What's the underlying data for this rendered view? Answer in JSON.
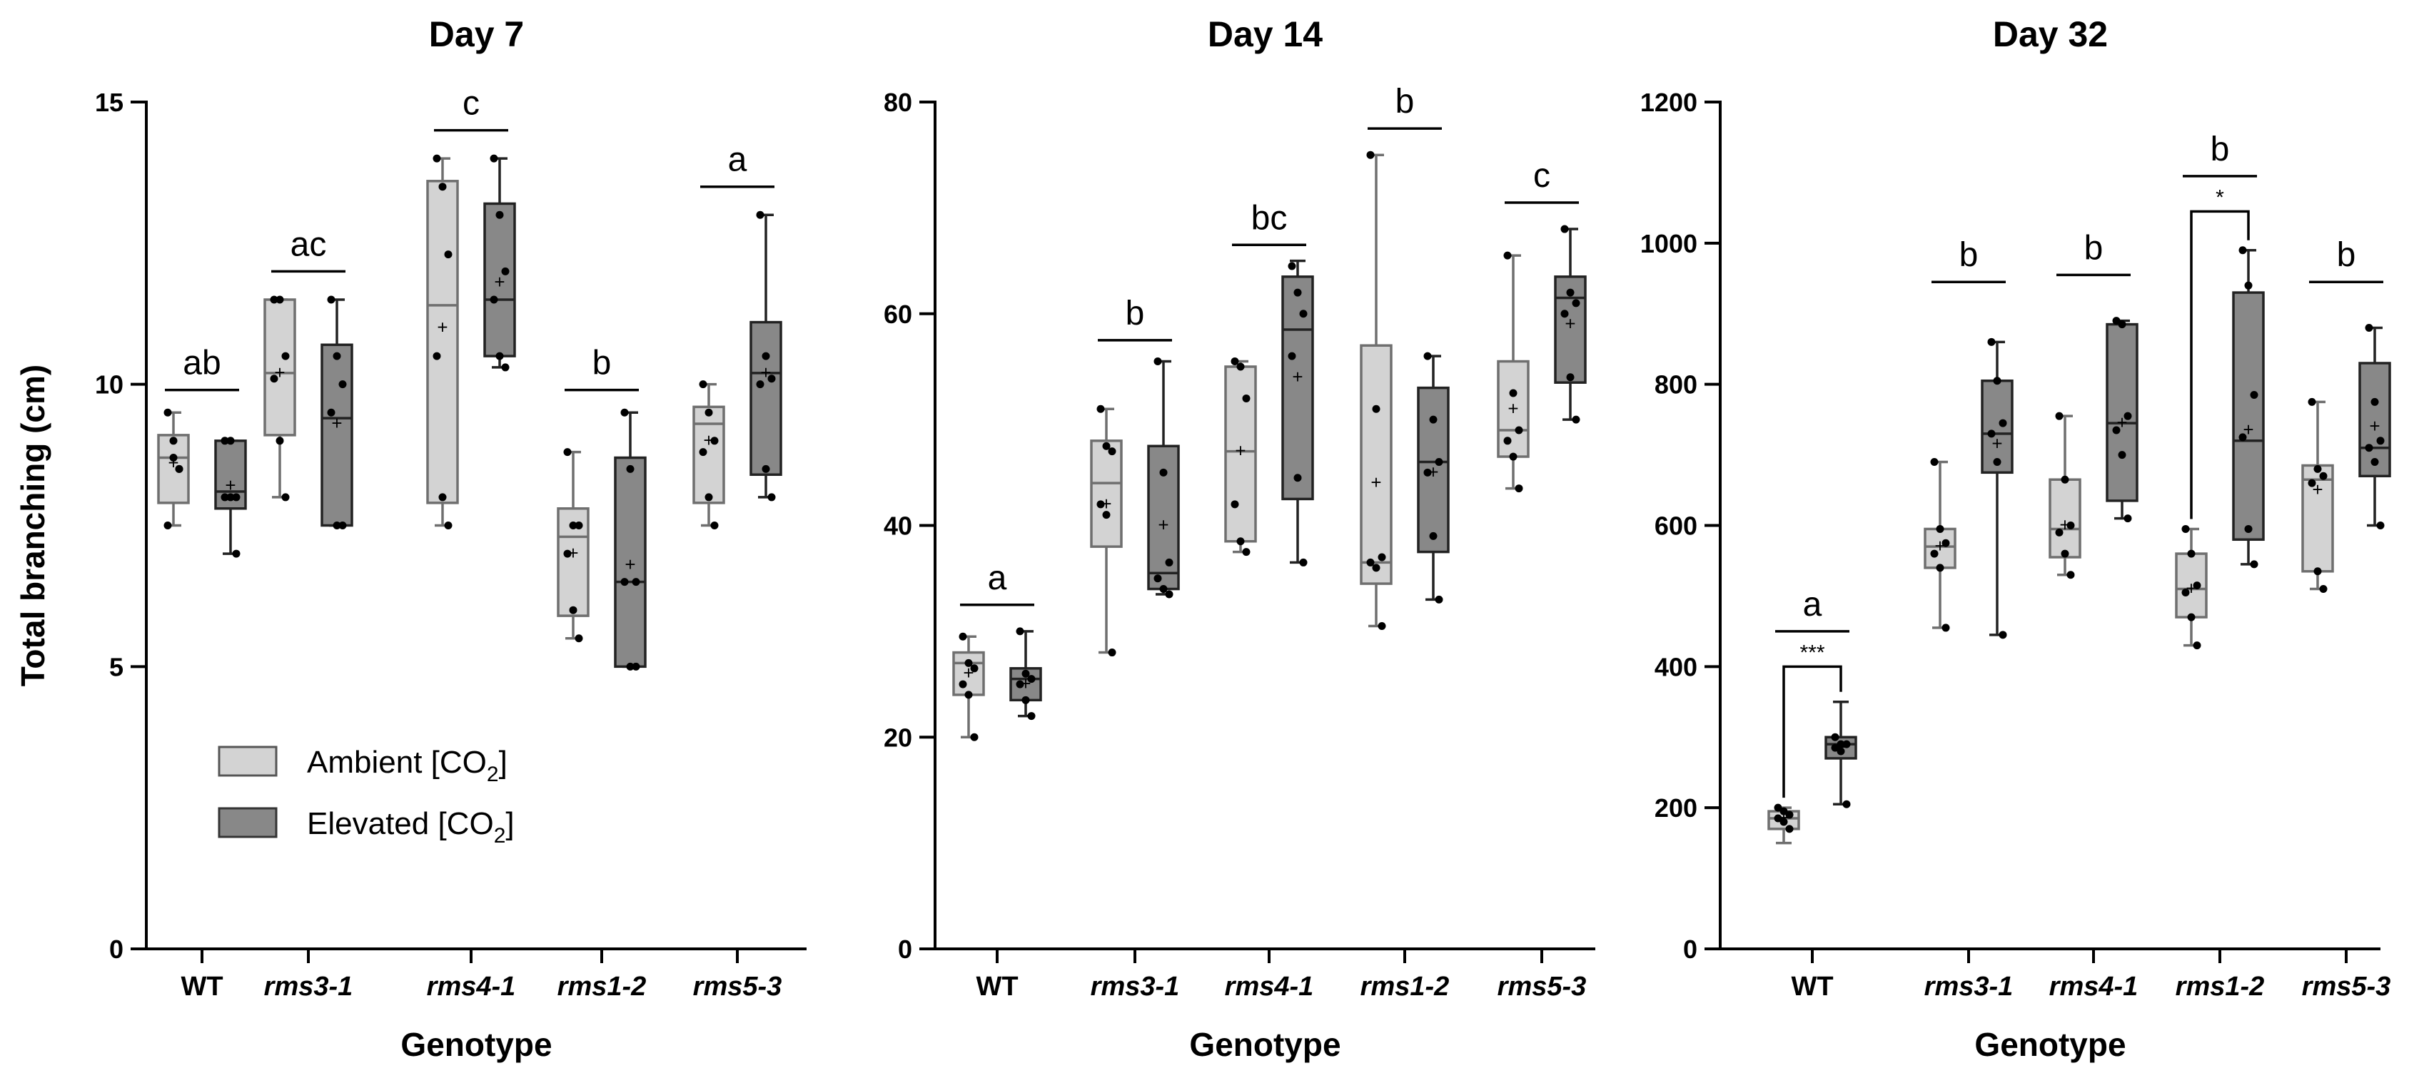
{
  "chart_data": [
    {
      "type": "box",
      "title": "Day 7",
      "xlabel": "Genotype",
      "ylabel": "Total branching (cm)",
      "ylim": [
        0,
        15
      ],
      "yticks": [
        "0",
        "5",
        "10",
        "15"
      ],
      "ytick_values": [
        0,
        5,
        10,
        15
      ],
      "categories": [
        "WT",
        "rms3-1",
        "rms4-1",
        "rms1-2",
        "rms5-3"
      ],
      "italic_categories": [
        false,
        true,
        true,
        true,
        true
      ],
      "series": [
        {
          "name": "Ambient [CO2]",
          "color": "#d3d3d3",
          "boxes": [
            {
              "min": 7.5,
              "q1": 7.9,
              "median": 8.7,
              "q3": 9.1,
              "max": 9.5,
              "mean": 8.6,
              "points": [
                9.5,
                9.0,
                8.5,
                7.5,
                8.7,
                8.5
              ]
            },
            {
              "min": 8.0,
              "q1": 9.1,
              "median": 10.2,
              "q3": 11.5,
              "max": 11.5,
              "mean": 10.2,
              "points": [
                11.5,
                11.5,
                10.5,
                10.1,
                9.0,
                8.0
              ]
            },
            {
              "min": 7.5,
              "q1": 7.9,
              "median": 11.4,
              "q3": 13.6,
              "max": 14.0,
              "mean": 11.0,
              "points": [
                14.0,
                13.5,
                12.3,
                10.5,
                8.0,
                7.5
              ]
            },
            {
              "min": 5.5,
              "q1": 5.9,
              "median": 7.3,
              "q3": 7.8,
              "max": 8.8,
              "mean": 7.0,
              "points": [
                8.8,
                7.5,
                7.5,
                7.0,
                6.0,
                5.5
              ]
            },
            {
              "min": 7.5,
              "q1": 7.9,
              "median": 9.3,
              "q3": 9.6,
              "max": 10.0,
              "mean": 9.0,
              "points": [
                10.0,
                9.5,
                9.0,
                8.8,
                8.0,
                7.5
              ]
            }
          ]
        },
        {
          "name": "Elevated [CO2]",
          "color": "#888888",
          "boxes": [
            {
              "min": 7.0,
              "q1": 7.8,
              "median": 8.1,
              "q3": 9.0,
              "max": 9.0,
              "mean": 8.2,
              "points": [
                9.0,
                9.0,
                8.0,
                8.0,
                8.0,
                7.0
              ]
            },
            {
              "min": 7.5,
              "q1": 7.5,
              "median": 9.4,
              "q3": 10.7,
              "max": 11.5,
              "mean": 9.3,
              "points": [
                11.5,
                10.5,
                10.0,
                9.5,
                7.5,
                7.5
              ]
            },
            {
              "min": 10.3,
              "q1": 10.5,
              "median": 11.5,
              "q3": 13.2,
              "max": 14.0,
              "mean": 11.8,
              "points": [
                14.0,
                13.0,
                12.0,
                11.5,
                10.5,
                10.3
              ]
            },
            {
              "min": 5.0,
              "q1": 5.0,
              "median": 6.5,
              "q3": 8.7,
              "max": 9.5,
              "mean": 6.8,
              "points": [
                9.5,
                8.5,
                6.5,
                6.5,
                5.0,
                5.0
              ]
            },
            {
              "min": 8.0,
              "q1": 8.4,
              "median": 10.2,
              "q3": 11.1,
              "max": 13.0,
              "mean": 10.2,
              "points": [
                13.0,
                10.5,
                10.1,
                10.0,
                8.5,
                8.0
              ]
            }
          ]
        }
      ],
      "sig_letters": [
        "ab",
        "ac",
        "c",
        "b",
        "a"
      ],
      "sig_heights": [
        9.9,
        12.0,
        14.5,
        9.9,
        13.5
      ],
      "pairwise": []
    },
    {
      "type": "box",
      "title": "Day 14",
      "xlabel": "Genotype",
      "ylabel": "",
      "ylim": [
        0,
        80
      ],
      "yticks": [
        "0",
        "20",
        "40",
        "60",
        "80"
      ],
      "ytick_values": [
        0,
        20,
        40,
        60,
        80
      ],
      "categories": [
        "WT",
        "rms3-1",
        "rms4-1",
        "rms1-2",
        "rms5-3"
      ],
      "italic_categories": [
        false,
        true,
        true,
        true,
        true
      ],
      "series": [
        {
          "name": "Ambient [CO2]",
          "color": "#d3d3d3",
          "boxes": [
            {
              "min": 20.0,
              "q1": 24.0,
              "median": 27.0,
              "q3": 28.0,
              "max": 29.5,
              "mean": 26.0,
              "points": [
                29.5,
                27.0,
                26.5,
                25.0,
                24.0,
                20.0
              ]
            },
            {
              "min": 28.0,
              "q1": 38.0,
              "median": 44.0,
              "q3": 48.0,
              "max": 51.0,
              "mean": 42.0,
              "points": [
                51.0,
                47.5,
                47.0,
                42.0,
                41.0,
                28.0
              ]
            },
            {
              "min": 37.5,
              "q1": 38.5,
              "median": 47.0,
              "q3": 55.0,
              "max": 55.5,
              "mean": 47.0,
              "points": [
                55.5,
                55.0,
                52.0,
                42.0,
                38.5,
                37.5
              ]
            },
            {
              "min": 30.5,
              "q1": 34.5,
              "median": 36.5,
              "q3": 57.0,
              "max": 75.0,
              "mean": 44.0,
              "points": [
                75.0,
                51.0,
                37.0,
                36.5,
                36.0,
                30.5
              ]
            },
            {
              "min": 43.5,
              "q1": 46.5,
              "median": 49.0,
              "q3": 55.5,
              "max": 65.5,
              "mean": 51.0,
              "points": [
                65.5,
                52.5,
                49.0,
                48.0,
                46.5,
                43.5
              ]
            }
          ]
        },
        {
          "name": "Elevated [CO2]",
          "color": "#888888",
          "boxes": [
            {
              "min": 22.0,
              "q1": 23.5,
              "median": 25.5,
              "q3": 26.5,
              "max": 30.0,
              "mean": 25.0,
              "points": [
                30.0,
                26.0,
                25.5,
                25.0,
                23.5,
                22.0
              ]
            },
            {
              "min": 33.5,
              "q1": 34.0,
              "median": 35.5,
              "q3": 47.5,
              "max": 55.5,
              "mean": 40.0,
              "points": [
                55.5,
                45.0,
                36.5,
                35.0,
                34.0,
                33.5
              ]
            },
            {
              "min": 36.5,
              "q1": 42.5,
              "median": 58.5,
              "q3": 63.5,
              "max": 65.0,
              "mean": 54.0,
              "points": [
                64.5,
                62.0,
                60.0,
                56.0,
                44.5,
                36.5
              ]
            },
            {
              "min": 33.0,
              "q1": 37.5,
              "median": 46.0,
              "q3": 53.0,
              "max": 56.0,
              "mean": 45.0,
              "points": [
                56.0,
                50.0,
                46.0,
                45.0,
                39.0,
                33.0
              ]
            },
            {
              "min": 50.0,
              "q1": 53.5,
              "median": 61.5,
              "q3": 63.5,
              "max": 68.0,
              "mean": 59.0,
              "points": [
                68.0,
                62.0,
                61.0,
                60.0,
                54.0,
                50.0
              ]
            }
          ]
        }
      ],
      "sig_letters": [
        "a",
        "b",
        "bc",
        "b",
        "c"
      ],
      "sig_heights": [
        32.5,
        57.5,
        66.5,
        77.5,
        70.5
      ],
      "pairwise": []
    },
    {
      "type": "box",
      "title": "Day 32",
      "xlabel": "Genotype",
      "ylabel": "",
      "ylim": [
        0,
        1200
      ],
      "yticks": [
        "0",
        "200",
        "400",
        "600",
        "800",
        "1000",
        "1200"
      ],
      "ytick_values": [
        0,
        200,
        400,
        600,
        800,
        1000,
        1200
      ],
      "categories": [
        "WT",
        "rms3-1",
        "rms4-1",
        "rms1-2",
        "rms5-3"
      ],
      "italic_categories": [
        false,
        true,
        true,
        true,
        true
      ],
      "series": [
        {
          "name": "Ambient [CO2]",
          "color": "#d3d3d3",
          "boxes": [
            {
              "min": 150,
              "q1": 170,
              "median": 185,
              "q3": 195,
              "max": 200,
              "mean": 185,
              "points": [
                200,
                195,
                190,
                185,
                180,
                170
              ]
            },
            {
              "min": 455,
              "q1": 540,
              "median": 570,
              "q3": 595,
              "max": 690,
              "mean": 570,
              "points": [
                690,
                595,
                575,
                560,
                540,
                455
              ]
            },
            {
              "min": 530,
              "q1": 555,
              "median": 595,
              "q3": 665,
              "max": 755,
              "mean": 600,
              "points": [
                755,
                665,
                600,
                590,
                560,
                530
              ]
            },
            {
              "min": 430,
              "q1": 470,
              "median": 510,
              "q3": 560,
              "max": 595,
              "mean": 510,
              "points": [
                595,
                560,
                515,
                505,
                470,
                430
              ]
            },
            {
              "min": 510,
              "q1": 535,
              "median": 665,
              "q3": 685,
              "max": 775,
              "mean": 650,
              "points": [
                775,
                680,
                670,
                660,
                535,
                510
              ]
            }
          ]
        },
        {
          "name": "Elevated [CO2]",
          "color": "#888888",
          "boxes": [
            {
              "min": 205,
              "q1": 270,
              "median": 290,
              "q3": 300,
              "max": 350,
              "mean": 285,
              "points": [
                300,
                290,
                290,
                285,
                280,
                205
              ]
            },
            {
              "min": 445,
              "q1": 675,
              "median": 730,
              "q3": 805,
              "max": 860,
              "mean": 715,
              "points": [
                860,
                805,
                745,
                730,
                690,
                445
              ]
            },
            {
              "min": 610,
              "q1": 635,
              "median": 745,
              "q3": 885,
              "max": 890,
              "mean": 745,
              "points": [
                890,
                885,
                755,
                735,
                700,
                610
              ]
            },
            {
              "min": 545,
              "q1": 580,
              "median": 720,
              "q3": 930,
              "max": 990,
              "mean": 735,
              "points": [
                990,
                940,
                785,
                725,
                595,
                545
              ]
            },
            {
              "min": 600,
              "q1": 670,
              "median": 710,
              "q3": 830,
              "max": 880,
              "mean": 740,
              "points": [
                880,
                775,
                720,
                710,
                690,
                600
              ]
            }
          ]
        }
      ],
      "sig_letters": [
        "a",
        "b",
        "b",
        "b",
        "b"
      ],
      "sig_heights": [
        450,
        945,
        955,
        1095,
        945
      ],
      "pairwise": [
        {
          "category": 0,
          "stars": "***",
          "y": 400
        },
        {
          "category": 3,
          "stars": "*",
          "y": 1045
        }
      ]
    }
  ],
  "legend": {
    "ambient_prefix": "Ambient [CO",
    "elevated_prefix": "Elevated [CO",
    "subscript": "2",
    "suffix": "]",
    "ambient_color": "#d3d3d3",
    "elevated_color": "#888888"
  }
}
